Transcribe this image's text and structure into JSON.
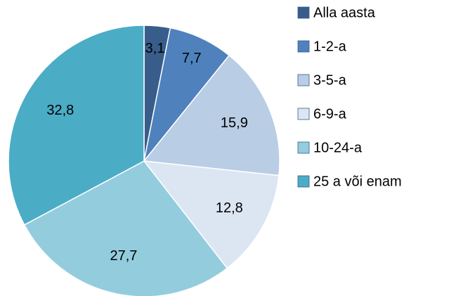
{
  "chart_data": {
    "type": "pie",
    "categories": [
      "Alla aasta",
      "1-2-a",
      "3-5-a",
      "6-9-a",
      "10-24-a",
      "25 a või enam"
    ],
    "values": [
      3.1,
      7.7,
      15.9,
      12.8,
      27.7,
      32.8
    ],
    "value_labels": [
      "3,1",
      "7,7",
      "15,9",
      "12,8",
      "27,7",
      "32,8"
    ],
    "colors": [
      "#385d8a",
      "#4f81bd",
      "#b9cde5",
      "#dce6f2",
      "#93cddd",
      "#4bacc6"
    ],
    "legend": "right"
  }
}
